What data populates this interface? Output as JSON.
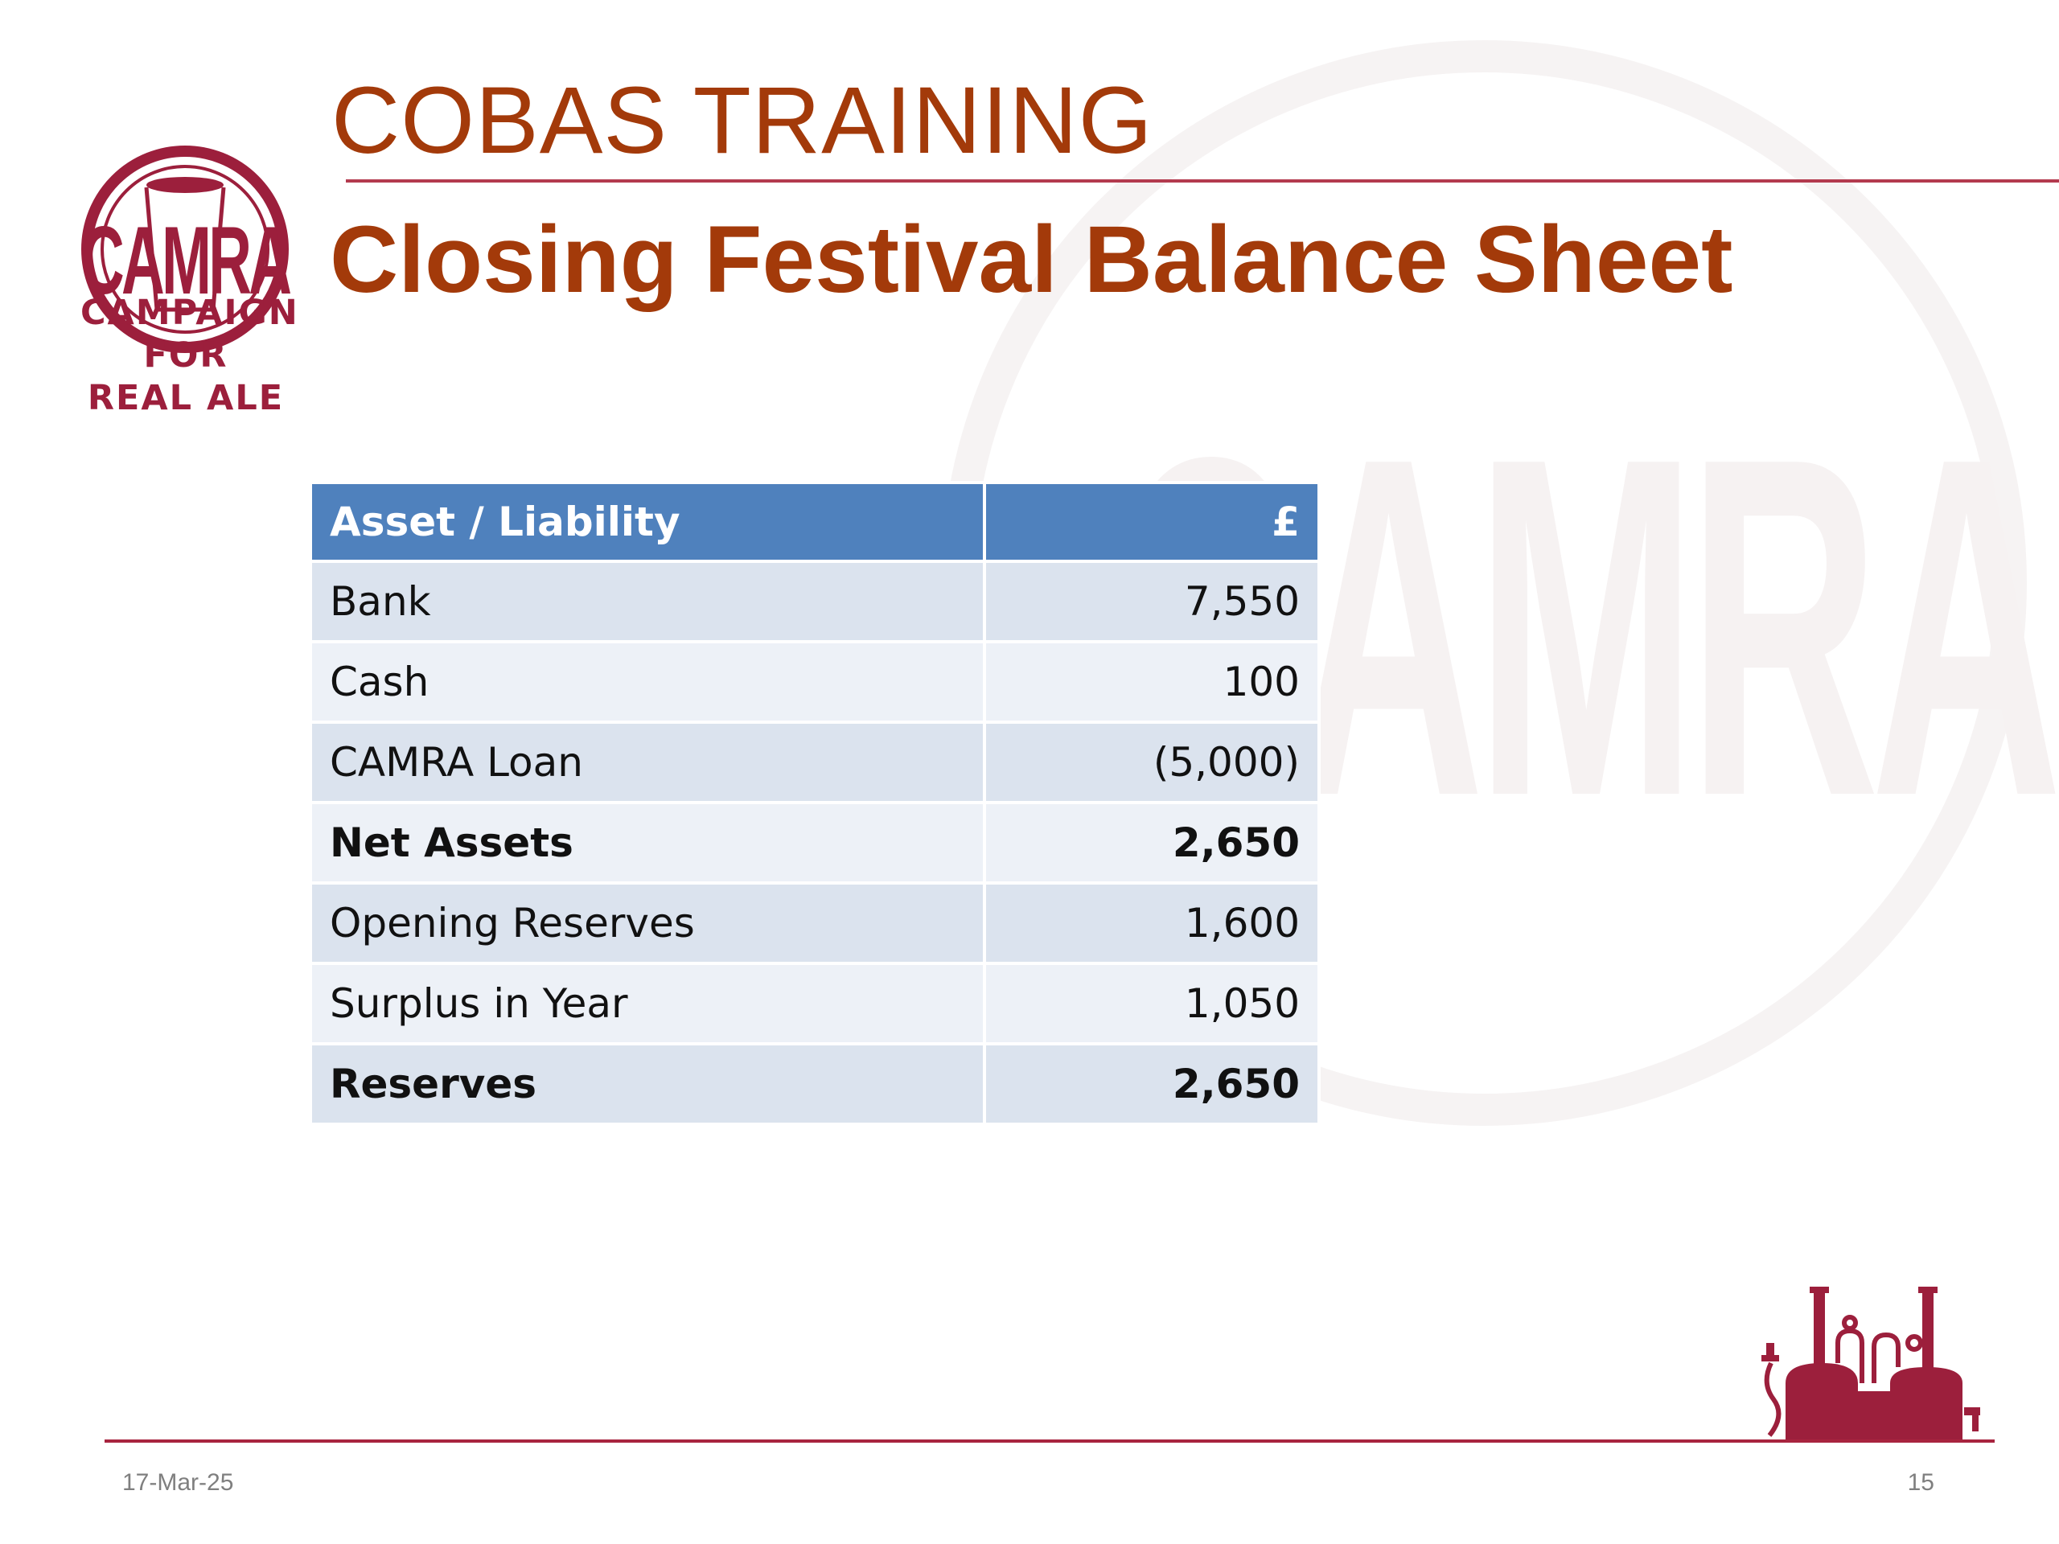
{
  "logo": {
    "name": "CAMRA",
    "lines": [
      "CAMPAIGN",
      "FOR",
      "REAL ALE"
    ]
  },
  "header": {
    "top_title": "COBAS TRAINING",
    "main_title": "Closing Festival Balance Sheet"
  },
  "table": {
    "columns": [
      "Asset / Liability",
      "£"
    ],
    "rows": [
      {
        "label": "Bank",
        "value": "7,550",
        "bold": false
      },
      {
        "label": "Cash",
        "value": "100",
        "bold": false
      },
      {
        "label": "CAMRA Loan",
        "value": "(5,000)",
        "bold": false
      },
      {
        "label": "Net Assets",
        "value": "2,650",
        "bold": true
      },
      {
        "label": "Opening Reserves",
        "value": "1,600",
        "bold": false
      },
      {
        "label": "Surplus in Year",
        "value": "1,050",
        "bold": false
      },
      {
        "label": "Reserves",
        "value": "2,650",
        "bold": true
      }
    ]
  },
  "footer": {
    "date": "17-Mar-25",
    "page_number": "15"
  },
  "colors": {
    "brand_maroon": "#9c1f3c",
    "title_brown": "#a33a0a",
    "table_header": "#4f81bd",
    "row_dark": "#dbe3ee",
    "row_light": "#edf1f7"
  },
  "icons": [
    "camra-logo-icon",
    "brewery-illustration-icon"
  ]
}
